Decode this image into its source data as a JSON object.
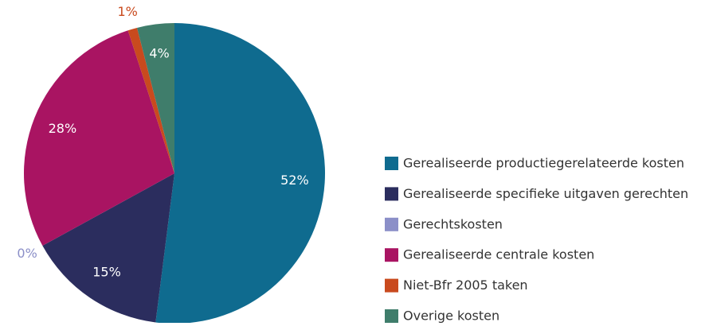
{
  "chart_data": {
    "type": "pie",
    "categories": [
      "Gerealiseerde productiegerelateerde kosten",
      "Gerealiseerde specifieke uitgaven gerechten",
      "Gerechtskosten",
      "Gerealiseerde centrale kosten",
      "Niet-Bfr 2005 taken",
      "Overige kosten"
    ],
    "values": [
      52,
      15,
      0,
      28,
      1,
      4
    ],
    "value_labels": [
      "52%",
      "15%",
      "0%",
      "28%",
      "1%",
      "4%"
    ],
    "colors": [
      "#0f6b8f",
      "#2b2d5e",
      "#8b8fc8",
      "#a91462",
      "#c94a1e",
      "#3f7d6b"
    ],
    "legend": "right"
  }
}
